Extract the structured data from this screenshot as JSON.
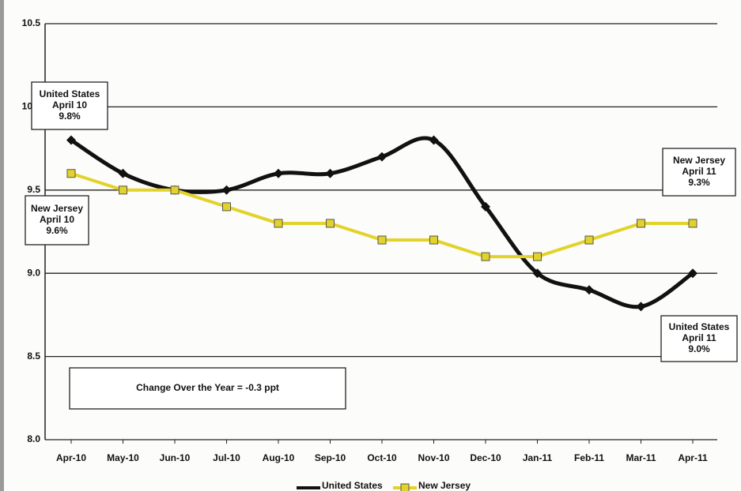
{
  "chart_data": {
    "type": "line",
    "categories": [
      "Apr-10",
      "May-10",
      "Jun-10",
      "Jul-10",
      "Aug-10",
      "Sep-10",
      "Oct-10",
      "Nov-10",
      "Dec-10",
      "Jan-11",
      "Feb-11",
      "Mar-11",
      "Apr-11"
    ],
    "series": [
      {
        "name": "United States",
        "color": "#111111",
        "smooth": true,
        "marker": "diamond",
        "values": [
          9.8,
          9.6,
          9.5,
          9.5,
          9.6,
          9.6,
          9.7,
          9.8,
          9.4,
          9.0,
          8.9,
          8.8,
          9.0
        ]
      },
      {
        "name": "New Jersey",
        "color": "#e3d22a",
        "smooth": false,
        "marker": "square",
        "values": [
          9.6,
          9.5,
          9.5,
          9.4,
          9.3,
          9.3,
          9.2,
          9.2,
          9.1,
          9.1,
          9.2,
          9.3,
          9.3
        ]
      }
    ],
    "ylim": [
      8.0,
      10.5
    ],
    "yticks": [
      {
        "value": 8,
        "label": "8.0"
      },
      {
        "value": 8.5,
        "label": "8.5"
      },
      {
        "value": 9,
        "label": "9.0"
      },
      {
        "value": 9.5,
        "label": "9.5"
      },
      {
        "value": 10,
        "label": "10.0"
      },
      {
        "value": 10.5,
        "label": "10.5"
      }
    ],
    "grid": true,
    "legend": "bottom",
    "annotations": [
      {
        "lines": [
          "United States",
          "April 10",
          "9.8%"
        ]
      },
      {
        "lines": [
          "New Jersey",
          "April 10",
          "9.6%"
        ]
      },
      {
        "lines": [
          "New Jersey",
          "April 11",
          "9.3%"
        ]
      },
      {
        "lines": [
          "United States",
          "April 11",
          "9.0%"
        ]
      },
      {
        "lines": [
          "Change Over the Year = -0.3 ppt"
        ]
      }
    ]
  }
}
